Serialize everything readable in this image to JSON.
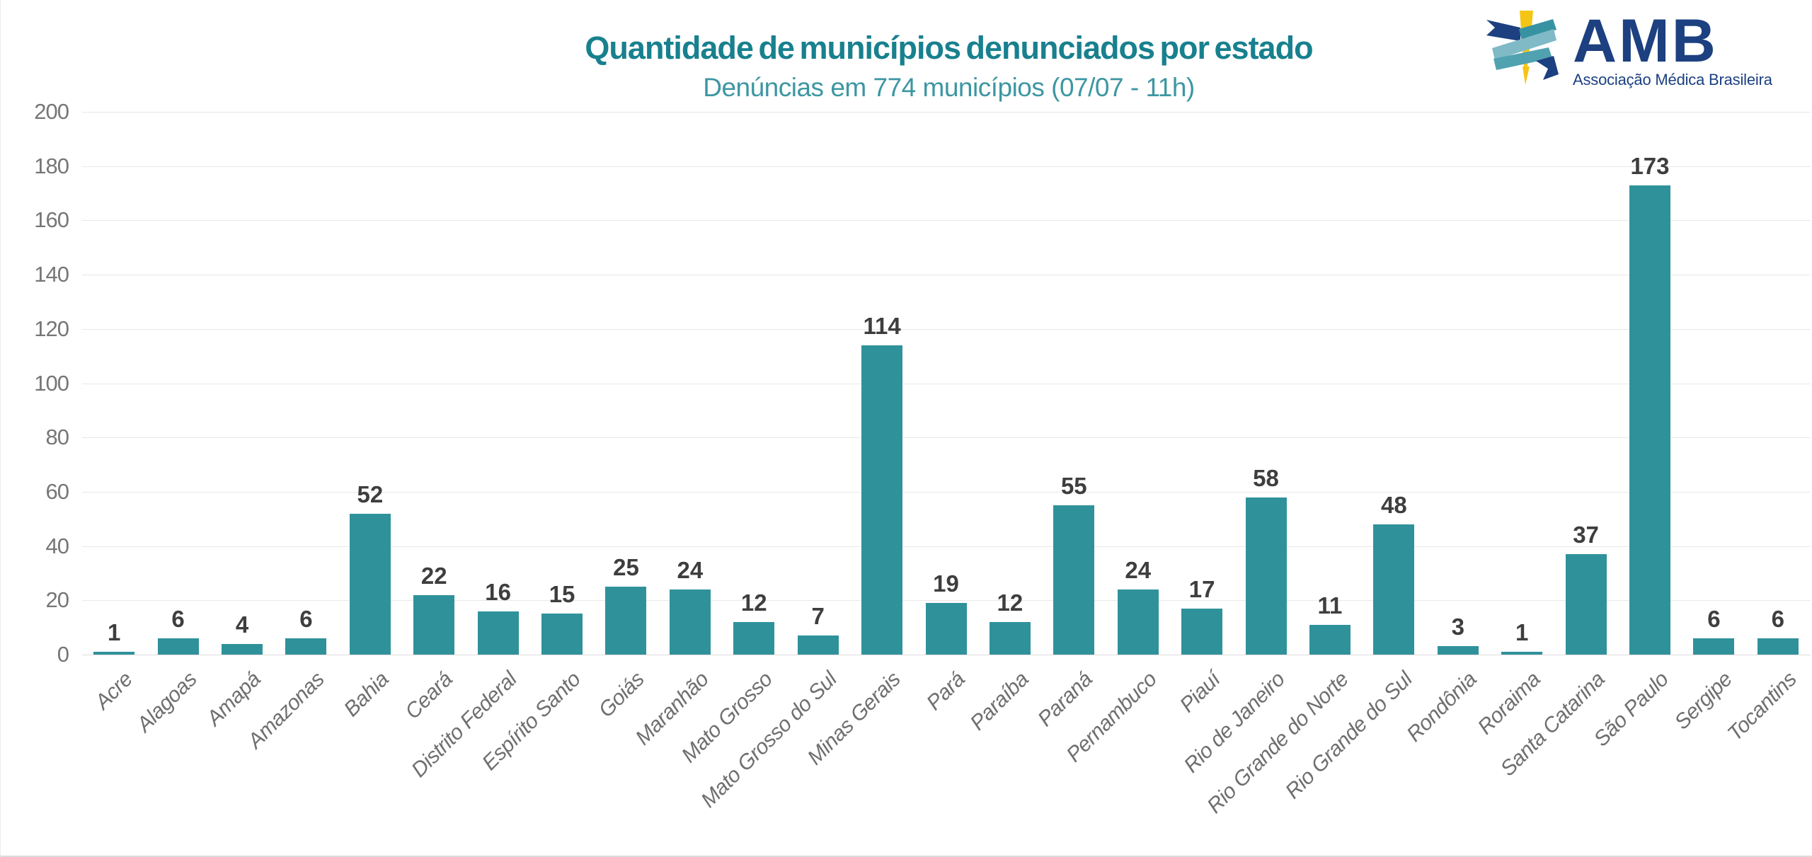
{
  "header": {
    "title": "Quantidade de municípios denunciados por estado",
    "subtitle": "Denúncias em 774 municípios (07/07 - 11h)"
  },
  "logo": {
    "acronym": "AMB",
    "full_name": "Associação Médica Brasileira",
    "navy": "#1C4080",
    "gold": "#F5C516",
    "teal": "#3792A2",
    "teal_mid": "#51A2B0",
    "teal_light": "#7FBAC6"
  },
  "chart_data": {
    "type": "bar",
    "title": "Quantidade de municípios denunciados por estado",
    "subtitle": "Denúncias em 774 municípios (07/07 - 11h)",
    "categories": [
      "Acre",
      "Alagoas",
      "Amapá",
      "Amazonas",
      "Bahia",
      "Ceará",
      "Distrito Federal",
      "Espírito Santo",
      "Goiás",
      "Maranhão",
      "Mato Grosso",
      "Mato Grosso do Sul",
      "Minas Gerais",
      "Pará",
      "Paraíba",
      "Paraná",
      "Pernambuco",
      "Piauí",
      "Rio de Janeiro",
      "Rio Grande do Norte",
      "Rio Grande do Sul",
      "Rondônia",
      "Roraima",
      "Santa Catarina",
      "São Paulo",
      "Sergipe",
      "Tocantins"
    ],
    "values": [
      1,
      6,
      4,
      6,
      52,
      22,
      16,
      15,
      25,
      24,
      12,
      7,
      114,
      19,
      12,
      55,
      24,
      17,
      58,
      11,
      48,
      3,
      1,
      37,
      173,
      6,
      6
    ],
    "total": 774,
    "xlabel": "",
    "ylabel": "",
    "ylim": [
      0,
      200
    ],
    "ytick_step": 20,
    "grid": true,
    "legend": "none",
    "bar_color": "#2F929B",
    "value_label_color": "#3E3E3E",
    "x_label_color": "#6F6F6F",
    "y_tick_color": "#767676",
    "gridline_color": "#E8E8E8",
    "baseline_color": "#DEDEDE",
    "title_color": "#18808E",
    "subtitle_color": "#3D96A2"
  }
}
